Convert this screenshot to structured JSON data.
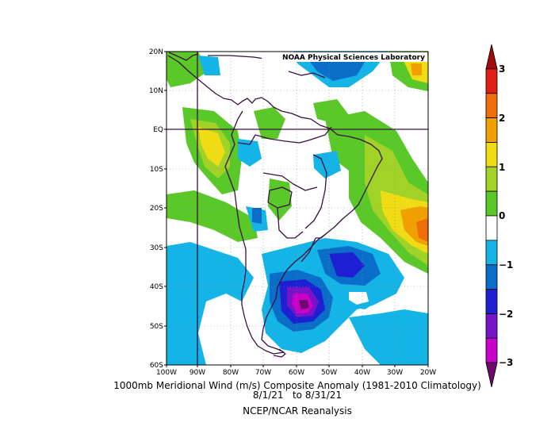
{
  "map": {
    "lab_label": "NOAA Physical Sciences Laboratory",
    "lat_labels": [
      "20N",
      "10N",
      "EQ",
      "10S",
      "20S",
      "30S",
      "40S",
      "50S",
      "60S"
    ],
    "lon_labels": [
      "100W",
      "90W",
      "80W",
      "70W",
      "60W",
      "50W",
      "40W",
      "30W",
      "20W"
    ]
  },
  "title": {
    "line1": "1000mb Meridional Wind (m/s) Composite Anomaly (1981-2010 Climatology)",
    "line2": "8/1/21   to 8/31/21",
    "line3": "NCEP/NCAR Reanalysis"
  },
  "colorbar": {
    "labels": [
      "3",
      "2",
      "1",
      "0",
      "−1",
      "−2",
      "−3"
    ],
    "colors": [
      "#a00a0a",
      "#e01e14",
      "#f06e0a",
      "#f0a000",
      "#f0dc14",
      "#a0d228",
      "#5ac828",
      "#ffffff",
      "#14b4e6",
      "#0a6ec8",
      "#1e1ed2",
      "#7814c8",
      "#c800c8",
      "#6e0a6e"
    ]
  }
}
